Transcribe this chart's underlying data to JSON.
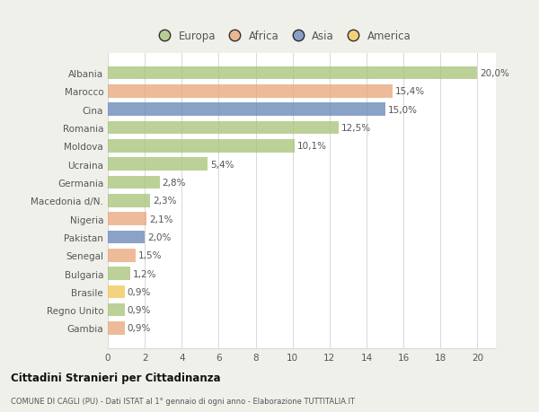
{
  "categories": [
    "Albania",
    "Marocco",
    "Cina",
    "Romania",
    "Moldova",
    "Ucraina",
    "Germania",
    "Macedonia d/N.",
    "Nigeria",
    "Pakistan",
    "Senegal",
    "Bulgaria",
    "Brasile",
    "Regno Unito",
    "Gambia"
  ],
  "values": [
    20.0,
    15.4,
    15.0,
    12.5,
    10.1,
    5.4,
    2.8,
    2.3,
    2.1,
    2.0,
    1.5,
    1.2,
    0.9,
    0.9,
    0.9
  ],
  "labels": [
    "20,0%",
    "15,4%",
    "15,0%",
    "12,5%",
    "10,1%",
    "5,4%",
    "2,8%",
    "2,3%",
    "2,1%",
    "2,0%",
    "1,5%",
    "1,2%",
    "0,9%",
    "0,9%",
    "0,9%"
  ],
  "continents": [
    "Europa",
    "Africa",
    "Asia",
    "Europa",
    "Europa",
    "Europa",
    "Europa",
    "Europa",
    "Africa",
    "Asia",
    "Africa",
    "Europa",
    "America",
    "Europa",
    "Africa"
  ],
  "colors": {
    "Europa": "#a8c47a",
    "Africa": "#e8a87c",
    "Asia": "#6b88b8",
    "America": "#f0c85a"
  },
  "legend_order": [
    "Europa",
    "Africa",
    "Asia",
    "America"
  ],
  "xlim": [
    0,
    21
  ],
  "xticks": [
    0,
    2,
    4,
    6,
    8,
    10,
    12,
    14,
    16,
    18,
    20
  ],
  "page_background": "#f0f0eb",
  "plot_background": "#ffffff",
  "title": "Cittadini Stranieri per Cittadinanza",
  "subtitle": "COMUNE DI CAGLI (PU) - Dati ISTAT al 1° gennaio di ogni anno - Elaborazione TUTTITALIA.IT",
  "grid_color": "#d8d8d8",
  "text_color": "#555555",
  "bar_alpha": 0.78,
  "bar_height": 0.72,
  "label_fontsize": 7.5,
  "ytick_fontsize": 7.5,
  "xtick_fontsize": 7.5,
  "legend_fontsize": 8.5
}
